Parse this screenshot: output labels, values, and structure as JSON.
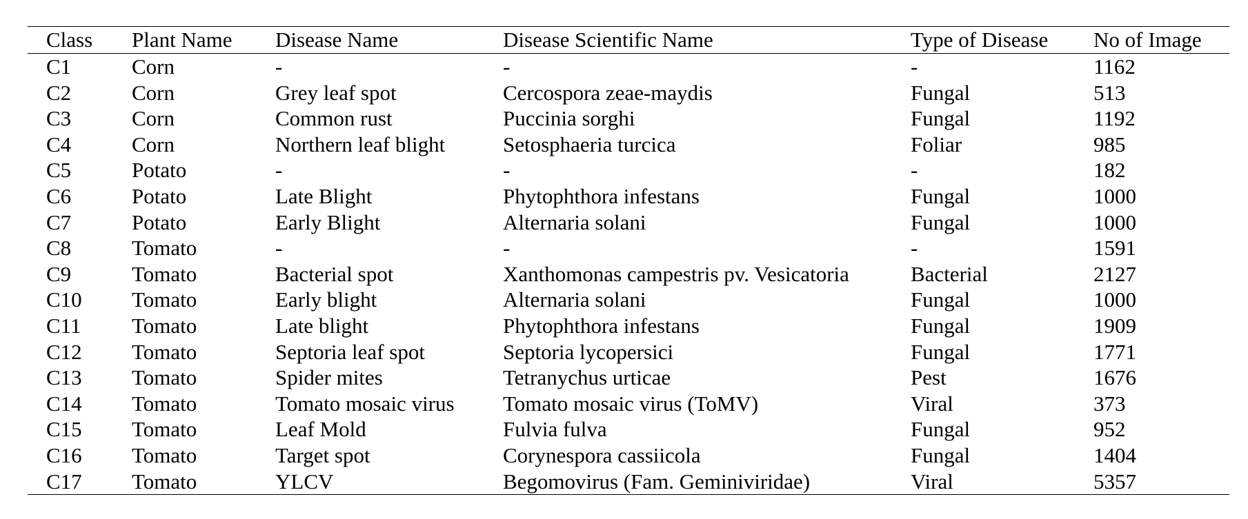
{
  "table": {
    "headers": [
      "Class",
      "Plant Name",
      "Disease Name",
      "Disease Scientific Name",
      "Type of Disease",
      "No of Image"
    ],
    "rows": [
      [
        "C1",
        "Corn",
        "-",
        "-",
        "-",
        "1162"
      ],
      [
        "C2",
        "Corn",
        "Grey leaf spot",
        "Cercospora zeae-maydis",
        "Fungal",
        "513"
      ],
      [
        "C3",
        "Corn",
        "Common rust",
        "Puccinia sorghi",
        "Fungal",
        "1192"
      ],
      [
        "C4",
        "Corn",
        "Northern leaf blight",
        "Setosphaeria turcica",
        "Foliar",
        "985"
      ],
      [
        "C5",
        "Potato",
        "-",
        "-",
        "-",
        "182"
      ],
      [
        "C6",
        "Potato",
        "Late Blight",
        "Phytophthora infestans",
        "Fungal",
        "1000"
      ],
      [
        "C7",
        "Potato",
        "Early Blight",
        "Alternaria solani",
        "Fungal",
        "1000"
      ],
      [
        "C8",
        "Tomato",
        "-",
        "-",
        "-",
        "1591"
      ],
      [
        "C9",
        "Tomato",
        "Bacterial spot",
        "Xanthomonas campestris pv. Vesicatoria",
        "Bacterial",
        "2127"
      ],
      [
        "C10",
        "Tomato",
        "Early blight",
        "Alternaria solani",
        "Fungal",
        "1000"
      ],
      [
        "C11",
        "Tomato",
        "Late blight",
        "Phytophthora infestans",
        "Fungal",
        "1909"
      ],
      [
        "C12",
        "Tomato",
        "Septoria leaf spot",
        "Septoria lycopersici",
        "Fungal",
        "1771"
      ],
      [
        "C13",
        "Tomato",
        "Spider mites",
        "Tetranychus urticae",
        "Pest",
        "1676"
      ],
      [
        "C14",
        "Tomato",
        "Tomato mosaic virus",
        "Tomato mosaic virus (ToMV)",
        "Viral",
        "373"
      ],
      [
        "C15",
        "Tomato",
        "Leaf Mold",
        "Fulvia fulva",
        "Fungal",
        "952"
      ],
      [
        "C16",
        "Tomato",
        "Target spot",
        "Corynespora cassiicola",
        "Fungal",
        "1404"
      ],
      [
        "C17",
        "Tomato",
        "YLCV",
        "Begomovirus (Fam. Geminiviridae)",
        "Viral",
        "5357"
      ]
    ]
  }
}
